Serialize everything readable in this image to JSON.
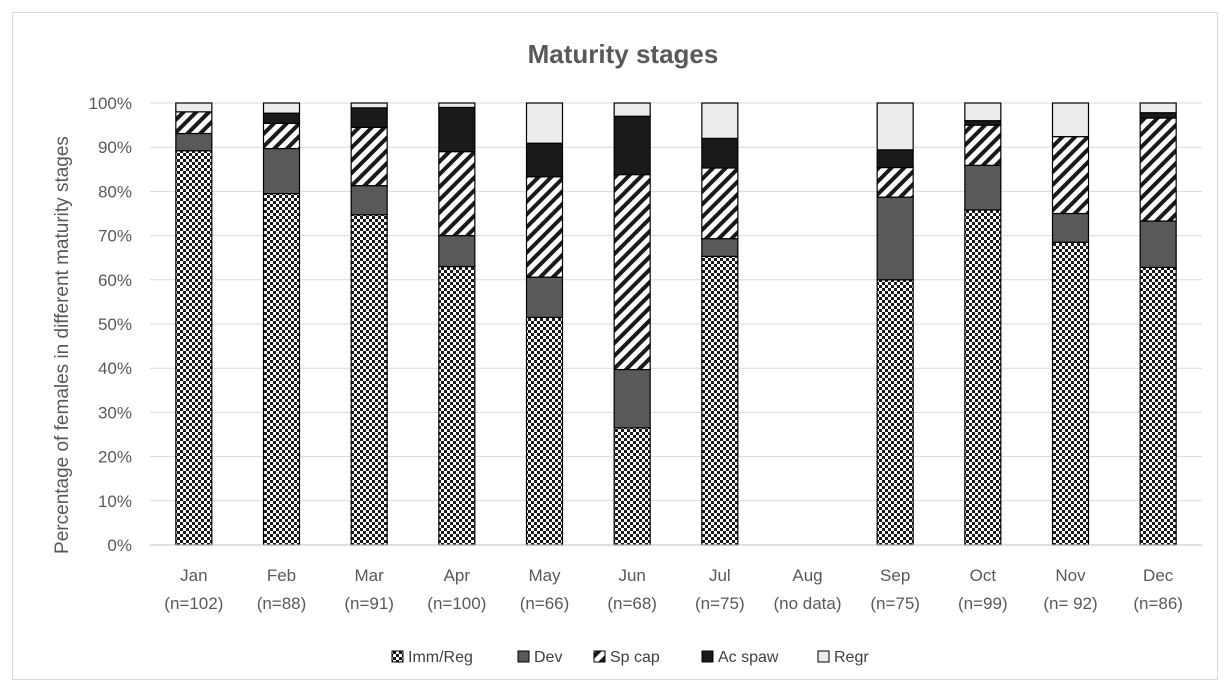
{
  "chart_data": {
    "type": "bar",
    "stacked": true,
    "title": "Maturity stages",
    "xlabel": "",
    "ylabel": "Percentage of females in different  maturity stages",
    "ylim": [
      0,
      100
    ],
    "y_ticks": [
      "0%",
      "10%",
      "20%",
      "30%",
      "40%",
      "50%",
      "60%",
      "70%",
      "80%",
      "90%",
      "100%"
    ],
    "grid": true,
    "legend_position": "bottom",
    "categories": [
      "Jan",
      "Feb",
      "Mar",
      "Apr",
      "May",
      "Jun",
      "Jul",
      "Aug",
      "Sep",
      "Oct",
      "Nov",
      "Dec"
    ],
    "category_sublabels": [
      "(n=102)",
      "(n=88)",
      "(n=91)",
      "(n=100)",
      "(n=66)",
      "(n=68)",
      "(n=75)",
      "(no data)",
      "(n=75)",
      "(n=99)",
      "(n= 92)",
      "(n=86)"
    ],
    "series": [
      {
        "name": "Imm/Reg",
        "pattern": "checker",
        "values": [
          89.2,
          79.5,
          74.7,
          63.0,
          51.5,
          26.5,
          65.3,
          null,
          60.0,
          75.8,
          68.5,
          62.8
        ]
      },
      {
        "name": "Dev",
        "pattern": "solid-gray",
        "values": [
          3.9,
          10.2,
          6.6,
          7.0,
          9.1,
          13.2,
          4.0,
          null,
          18.7,
          10.1,
          6.5,
          10.5
        ]
      },
      {
        "name": "Sp cap",
        "pattern": "diagonal",
        "values": [
          4.9,
          5.7,
          13.2,
          19.0,
          22.7,
          44.1,
          16.0,
          null,
          6.7,
          9.1,
          17.4,
          23.3
        ]
      },
      {
        "name": "Ac spaw",
        "pattern": "solid-black",
        "values": [
          0.0,
          2.3,
          4.4,
          10.0,
          7.6,
          13.2,
          6.7,
          null,
          4.0,
          1.0,
          0.0,
          1.2
        ]
      },
      {
        "name": "Regr",
        "pattern": "light",
        "values": [
          2.0,
          2.3,
          1.1,
          1.0,
          9.1,
          3.0,
          8.0,
          null,
          10.6,
          4.0,
          7.6,
          2.2
        ]
      }
    ],
    "colors": {
      "dev": "#595959",
      "acspaw": "#1a1a1a",
      "regr": "#ececec",
      "grid": "#d9d9d9",
      "text": "#595959"
    }
  }
}
